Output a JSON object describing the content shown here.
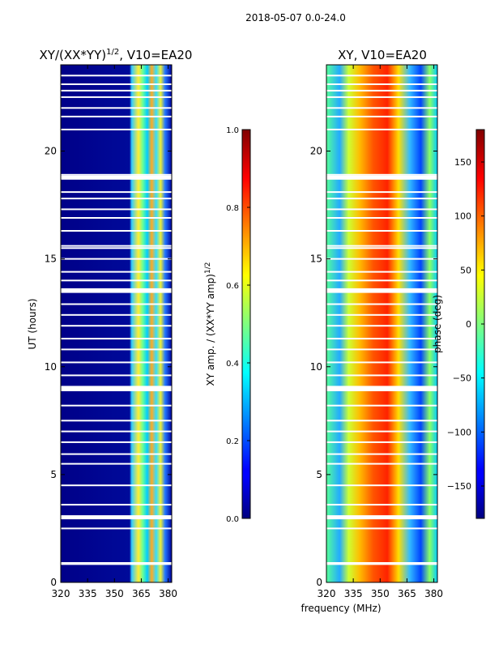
{
  "suptitle": "2018-05-07 0.0-24.0",
  "chart_data": [
    {
      "type": "heatmap",
      "title": "XY/(XX*YY)^1/2, V10=EA20",
      "title_main": "XY/(XX*YY)",
      "title_exp": "1/2",
      "title_tail": ", V10=EA20",
      "xlabel": "",
      "ylabel": "UT (hours)",
      "xlim": [
        320,
        382
      ],
      "ylim": [
        0,
        24
      ],
      "xticks": [
        320,
        335,
        350,
        365,
        380
      ],
      "yticks": [
        0,
        5,
        10,
        15,
        20
      ],
      "colorbar": {
        "label": "XY amp. / (XX*YY amp)^1/2",
        "label_main": "XY amp. / (XX*YY amp)",
        "label_exp": "1/2",
        "range": [
          0.0,
          1.0
        ],
        "ticks": [
          "0.0",
          "0.2",
          "0.4",
          "0.6",
          "0.8",
          "1.0"
        ]
      }
    },
    {
      "type": "heatmap",
      "title": "XY, V10=EA20",
      "xlabel": "frequency (MHz)",
      "ylabel": "",
      "xlim": [
        320,
        382
      ],
      "ylim": [
        0,
        24
      ],
      "xticks": [
        320,
        335,
        350,
        365,
        380
      ],
      "yticks": [
        0,
        5,
        10,
        15,
        20
      ],
      "colorbar": {
        "label": "phase (deg)",
        "range": [
          -180,
          180
        ],
        "ticks": [
          "150",
          "100",
          "50",
          "0",
          "−50",
          "−100",
          "−150"
        ]
      }
    }
  ],
  "data_gaps_hours": [
    0.85,
    0.9,
    2.5,
    3.0,
    3.05,
    3.6,
    4.5,
    5.5,
    5.95,
    6.5,
    7.0,
    7.5,
    8.2,
    8.9,
    9.0,
    9.6,
    10.2,
    10.8,
    11.3,
    11.9,
    12.4,
    12.9,
    13.5,
    13.6,
    14.0,
    14.4,
    15.0,
    15.5,
    15.6,
    16.3,
    16.9,
    17.3,
    17.8,
    18.1,
    18.75,
    18.9,
    21.0,
    21.6,
    22.0,
    22.5,
    22.8,
    23.1,
    23.5
  ]
}
